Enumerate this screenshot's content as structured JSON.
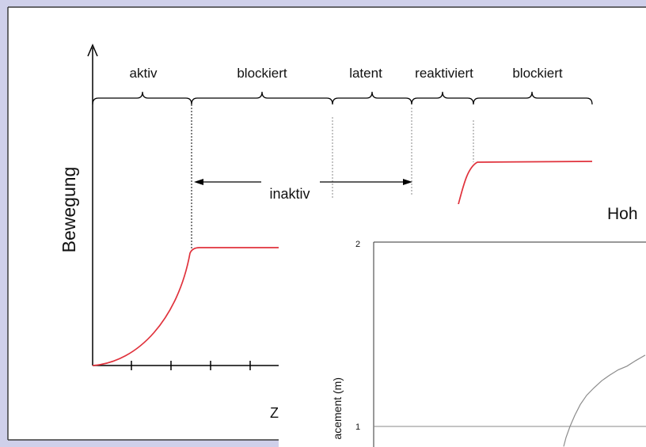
{
  "chart_data": [
    {
      "type": "line",
      "ylabel": "Bewegung",
      "xlabel": "Z",
      "phases": [
        "aktiv",
        "blockiert",
        "latent",
        "reaktiviert",
        "blockiert"
      ],
      "annotation": "inaktiv",
      "grid": false
    },
    {
      "type": "line",
      "title": "Hoh",
      "ylabel": "acement (m)",
      "yticks": [
        1,
        2
      ],
      "grid": true,
      "series": [
        {
          "values": [
            0.89,
            0.94,
            1.0,
            1.06,
            1.12,
            1.17,
            1.21,
            1.25,
            1.28,
            1.31,
            1.33,
            1.36,
            1.39
          ]
        }
      ]
    }
  ],
  "colors": {
    "movement_curve": "#e0323c",
    "displacement_line": "#8c8c8c",
    "background": "#cfd0ea"
  }
}
